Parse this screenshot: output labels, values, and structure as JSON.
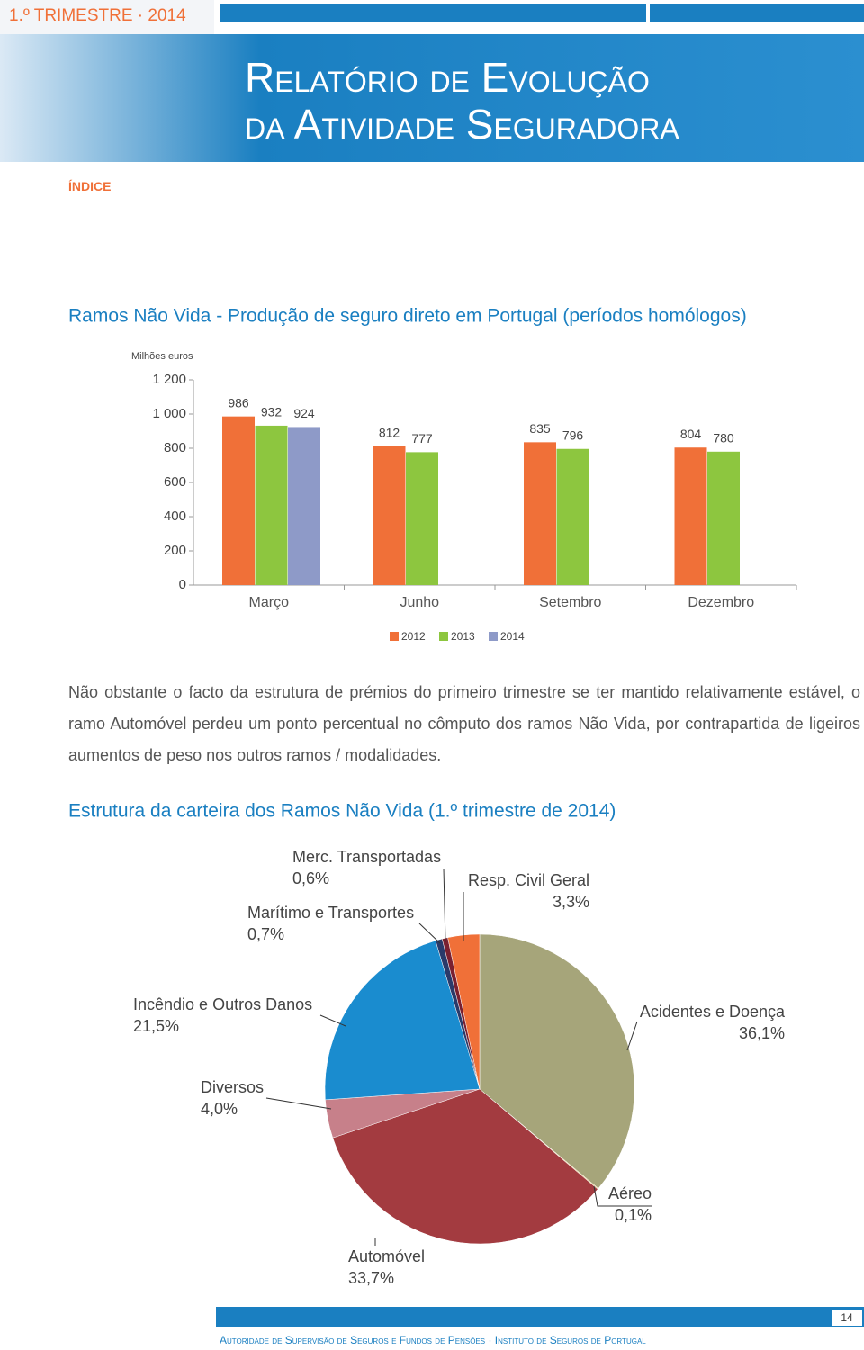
{
  "header": {
    "tag": "1.º TRIMESTRE · 2014",
    "title_line1": "Relatório de Evolução",
    "title_line2": "da Atividade Seguradora"
  },
  "index_link": "ÍNDICE",
  "paragraph": "Não obstante o facto da estrutura de prémios do primeiro trimestre se ter mantido relativamente estável, o ramo Automóvel perdeu um ponto percentual no cômputo dos ramos Não Vida, por contrapartida de ligeiros aumentos de peso nos outros ramos / modalidades.",
  "chart_data": [
    {
      "type": "bar",
      "title": "Ramos Não Vida - Produção de seguro direto em Portugal (períodos homólogos)",
      "y_label": "Milhões euros",
      "categories": [
        "Março",
        "Junho",
        "Setembro",
        "Dezembro"
      ],
      "series": [
        {
          "name": "2012",
          "color": "#f07038",
          "values": [
            986,
            812,
            835,
            804
          ]
        },
        {
          "name": "2013",
          "color": "#8dc63f",
          "values": [
            932,
            777,
            796,
            780
          ]
        },
        {
          "name": "2014",
          "color": "#8e9ac8",
          "values": [
            924,
            null,
            null,
            null
          ]
        }
      ],
      "ylim": [
        0,
        1200
      ],
      "yticks": [
        0,
        200,
        400,
        600,
        800,
        {
          "value": 1000,
          "label": "1 000"
        },
        {
          "value": 1200,
          "label": "1 200"
        }
      ]
    },
    {
      "type": "pie",
      "title": "Estrutura da carteira dos Ramos Não Vida (1.º trimestre de 2014)",
      "categories": [
        "Acidentes e Doença",
        "Aéreo",
        "Automóvel",
        "Diversos",
        "Incêndio e Outros Danos",
        "Marítimo e Transportes",
        "Merc. Transportadas",
        "Resp. Civil Geral"
      ],
      "values": [
        36.1,
        0.1,
        33.7,
        4.0,
        21.5,
        0.7,
        0.6,
        3.3
      ],
      "value_labels": [
        "36,1%",
        "0,1%",
        "33,7%",
        "4,0%",
        "21,5%",
        "0,7%",
        "0,6%",
        "3,3%"
      ],
      "colors": [
        "#a6a57a",
        "#e3c985",
        "#a33b40",
        "#c7808a",
        "#1a8ccf",
        "#2a3a6a",
        "#7a2030",
        "#f07038"
      ]
    }
  ],
  "footer": {
    "text": "Autoridade de Supervisão de Seguros e Fundos de Pensões · Instituto de Seguros de Portugal",
    "page": "14"
  }
}
